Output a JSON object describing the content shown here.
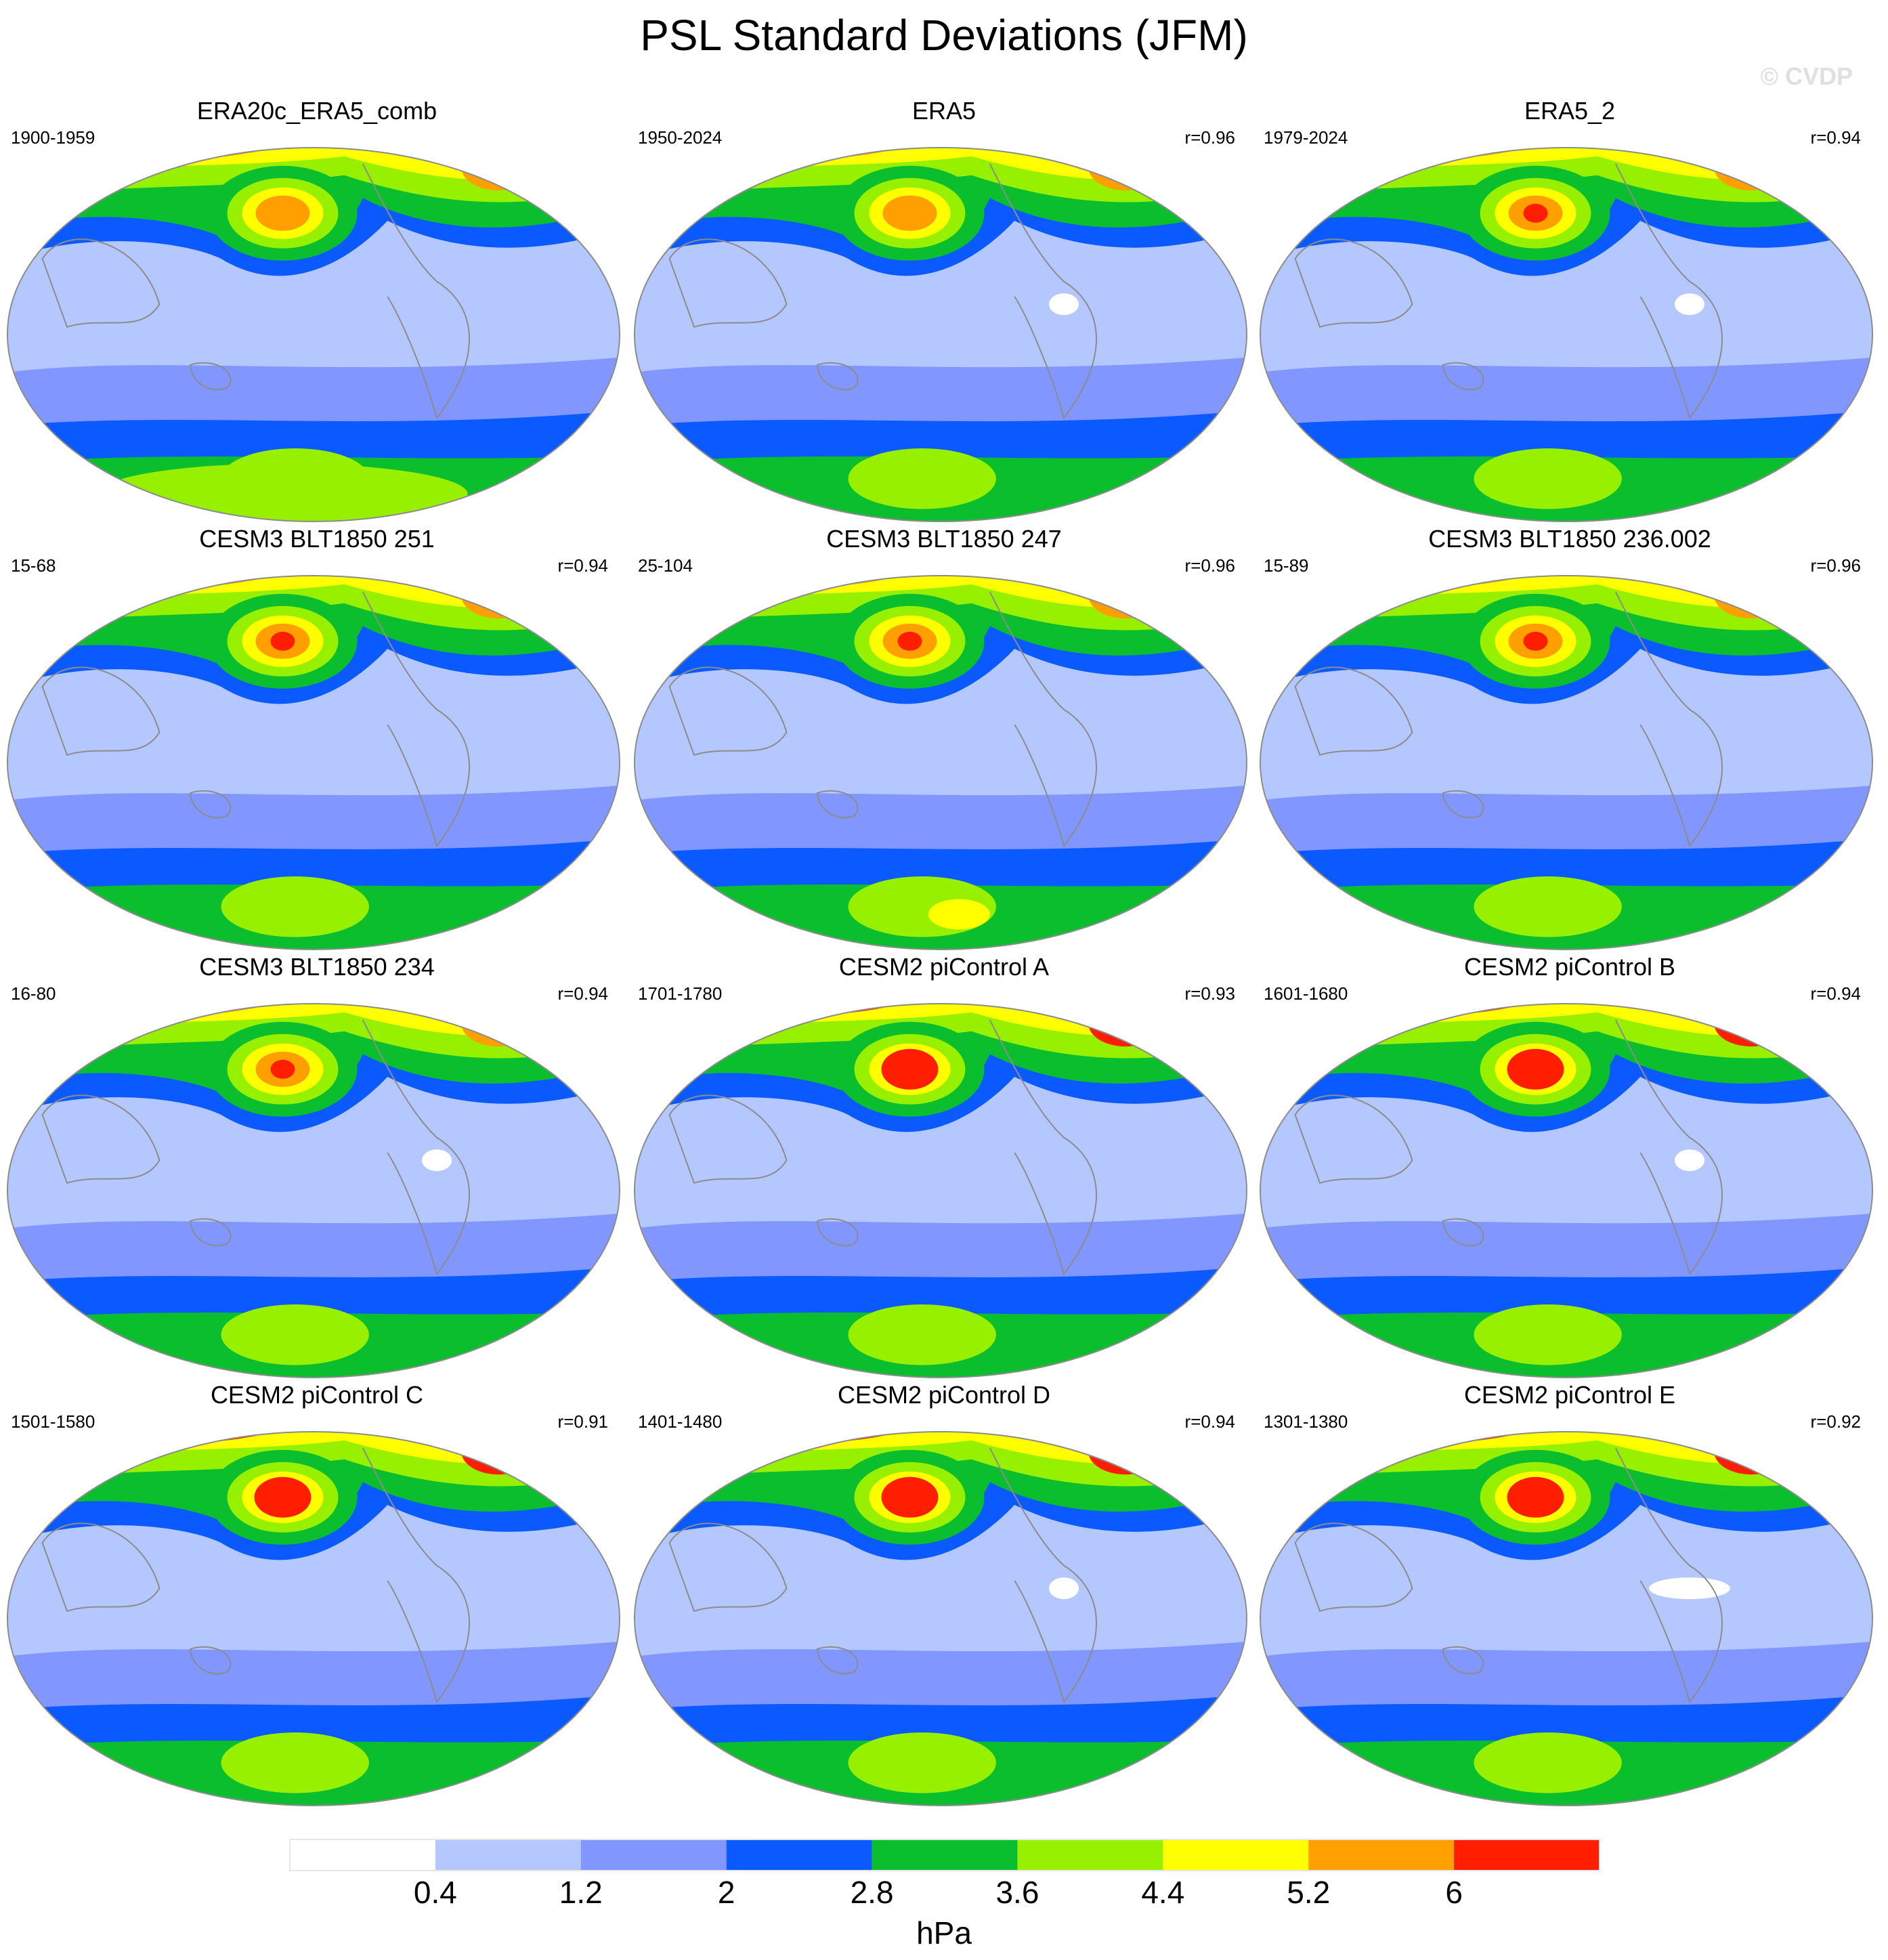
{
  "title": "PSL Standard Deviations (JFM)",
  "watermark": "© CVDP",
  "panels": [
    {
      "title": "ERA20c_ERA5_comb",
      "years": "1900-1959",
      "r": ""
    },
    {
      "title": "ERA5",
      "years": "1950-2024",
      "r": "r=0.96"
    },
    {
      "title": "ERA5_2",
      "years": "1979-2024",
      "r": "r=0.94"
    },
    {
      "title": "CESM3 BLT1850 251",
      "years": "15-68",
      "r": "r=0.94"
    },
    {
      "title": "CESM3 BLT1850 247",
      "years": "25-104",
      "r": "r=0.96"
    },
    {
      "title": "CESM3 BLT1850 236.002",
      "years": "15-89",
      "r": "r=0.96"
    },
    {
      "title": "CESM3 BLT1850 234",
      "years": "16-80",
      "r": "r=0.94"
    },
    {
      "title": "CESM2 piControl A",
      "years": "1701-1780",
      "r": "r=0.93"
    },
    {
      "title": "CESM2 piControl B",
      "years": "1601-1680",
      "r": "r=0.94"
    },
    {
      "title": "CESM2 piControl C",
      "years": "1501-1580",
      "r": "r=0.91"
    },
    {
      "title": "CESM2 piControl D",
      "years": "1401-1480",
      "r": "r=0.94"
    },
    {
      "title": "CESM2 piControl E",
      "years": "1301-1380",
      "r": "r=0.92"
    }
  ],
  "colorbar": {
    "label": "hPa",
    "levels": [
      "0.4",
      "1.2",
      "2",
      "2.8",
      "3.6",
      "4.4",
      "5.2",
      "6"
    ],
    "colors": [
      "#ffffff",
      "#b4c8ff",
      "#8296ff",
      "#0a5aff",
      "#0abe2d",
      "#96f000",
      "#ffff00",
      "#ffa000",
      "#ff1e00"
    ]
  }
}
